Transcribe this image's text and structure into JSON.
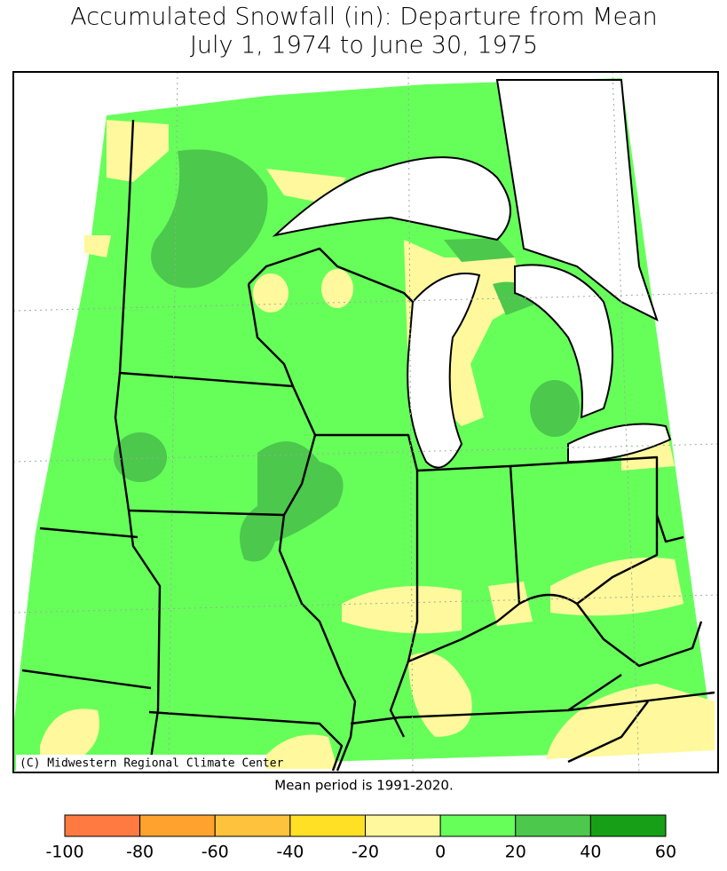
{
  "title": [
    "Accumulated Snowfall (in): Departure from Mean",
    "July 1, 1974 to June 30, 1975"
  ],
  "credit": "(C) Midwestern Regional Climate Center",
  "note": "Mean period is 1991-2020.",
  "legend": {
    "bins": [
      -100,
      -80,
      -60,
      -40,
      -20,
      0,
      20,
      40,
      60
    ],
    "colors": [
      "#ff7a40",
      "#ffa32e",
      "#ffc23c",
      "#ffe024",
      "#fff89c",
      "#66ff5a",
      "#4cc84c",
      "#17a017"
    ]
  }
}
